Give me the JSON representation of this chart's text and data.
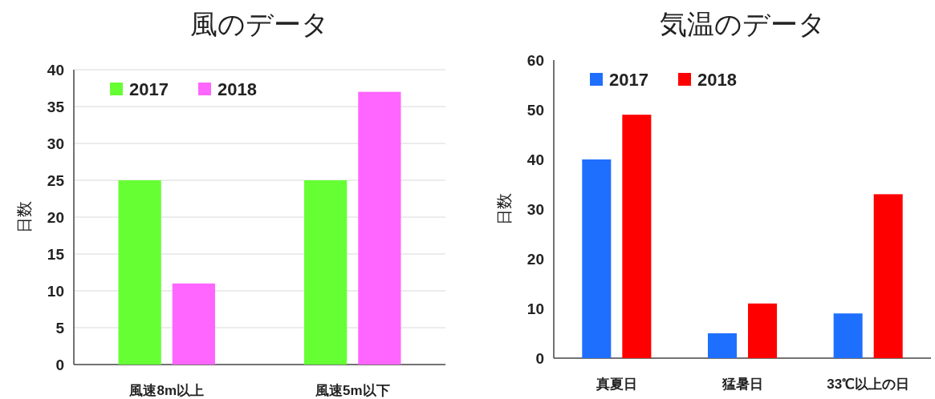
{
  "chart_data": [
    {
      "type": "bar",
      "title": "風のデータ",
      "ylabel": "日数",
      "categories": [
        "風速8m以上",
        "風速5m以下"
      ],
      "series": [
        {
          "name": "2017",
          "color": "#66ff33",
          "values": [
            25,
            25
          ]
        },
        {
          "name": "2018",
          "color": "#ff66ff",
          "values": [
            11,
            37
          ]
        }
      ],
      "ylim": [
        0,
        40
      ],
      "yticks": [
        0,
        5,
        10,
        15,
        20,
        25,
        30,
        35,
        40
      ],
      "grid": "y",
      "legend": "top left"
    },
    {
      "type": "bar",
      "title": "気温のデータ",
      "ylabel": "日数",
      "categories": [
        "真夏日",
        "猛暑日",
        "33℃以上の日"
      ],
      "series": [
        {
          "name": "2017",
          "color": "#1f6fff",
          "values": [
            40,
            5,
            9
          ]
        },
        {
          "name": "2018",
          "color": "#ff0000",
          "values": [
            49,
            11,
            33
          ]
        }
      ],
      "ylim": [
        0,
        60
      ],
      "yticks": [
        0,
        10,
        20,
        30,
        40,
        50,
        60
      ],
      "grid": false,
      "legend": "top left"
    }
  ]
}
